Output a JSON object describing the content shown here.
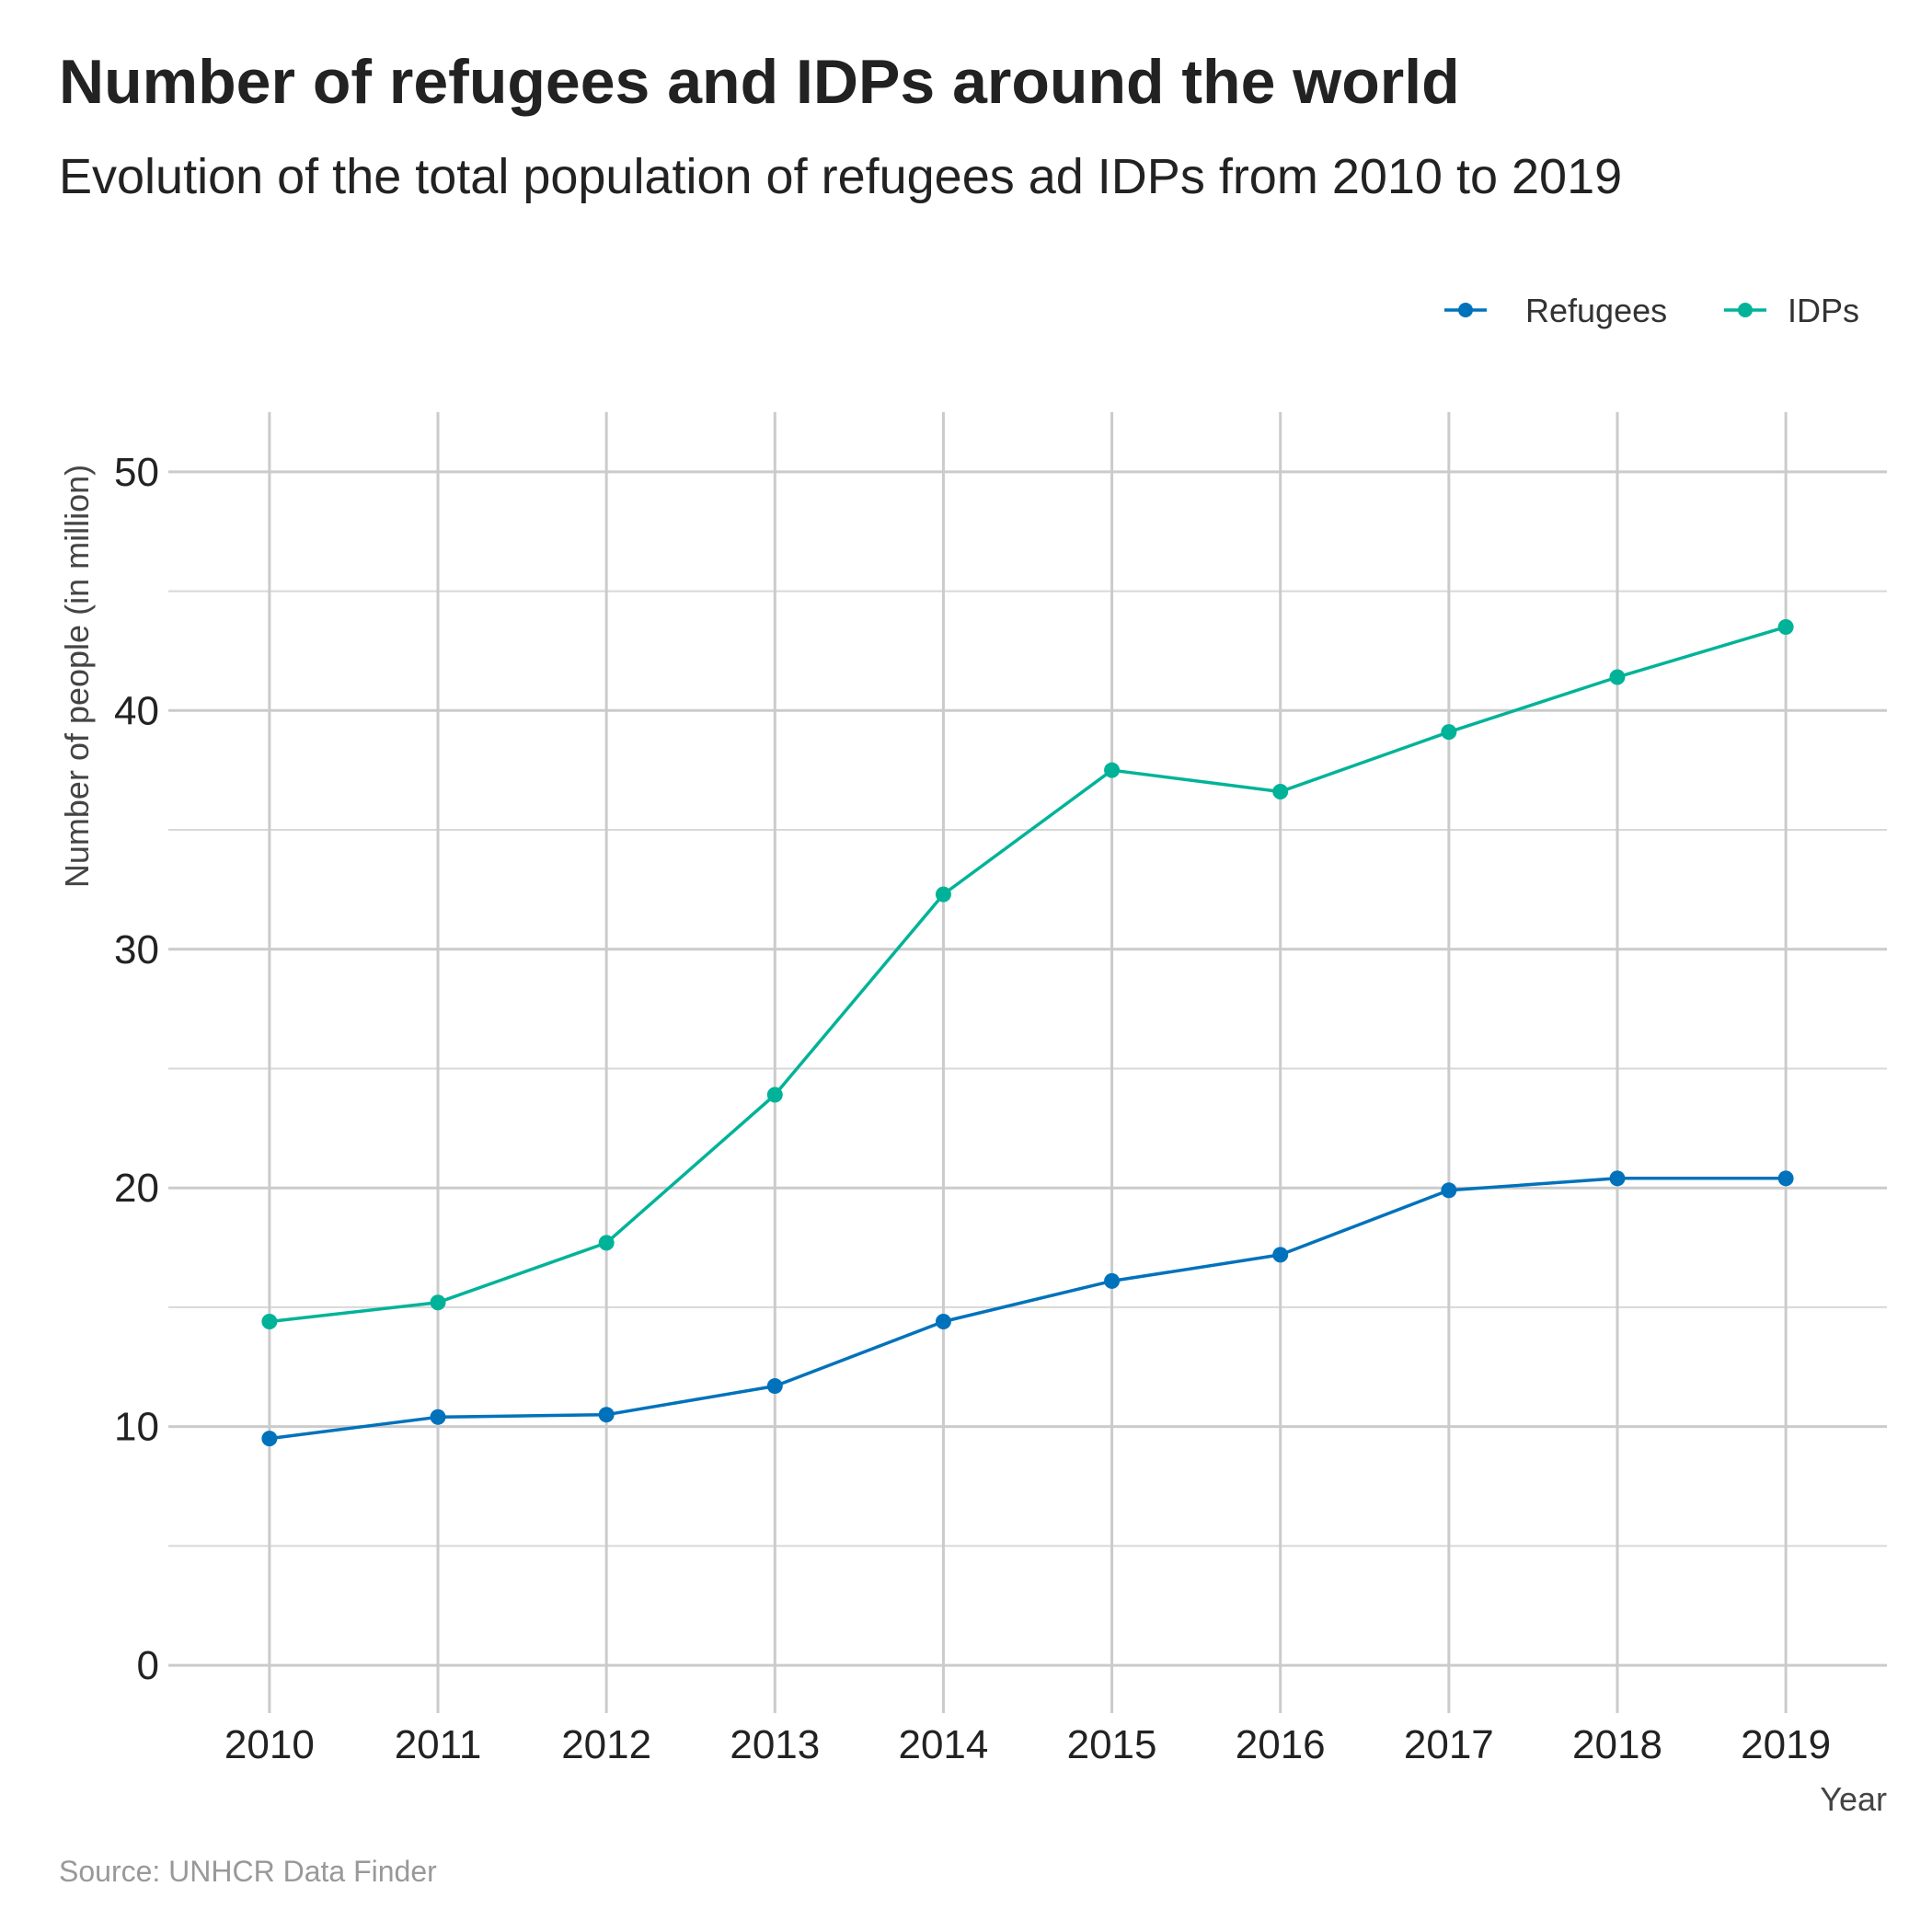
{
  "chart_data": {
    "type": "line",
    "title": "Number of refugees and IDPs around the world",
    "subtitle": "Evolution of the total population of refugees ad IDPs from 2010 to 2019",
    "xlabel": "Year",
    "ylabel": "Number of people (in million)",
    "caption": "Source: UNHCR Data Finder",
    "x": [
      2010,
      2011,
      2012,
      2013,
      2014,
      2015,
      2016,
      2017,
      2018,
      2019
    ],
    "x_tick_labels": [
      "2010",
      "2011",
      "2012",
      "2013",
      "2014",
      "2015",
      "2016",
      "2017",
      "2018",
      "2019"
    ],
    "y_ticks": [
      0,
      10,
      20,
      30,
      40,
      50
    ],
    "y_tick_labels": [
      "0",
      "10",
      "20",
      "30",
      "40",
      "50"
    ],
    "ylim": [
      -2,
      52.5
    ],
    "xlim": [
      2009.4,
      2019.6
    ],
    "grid": true,
    "legend_position": "top-right",
    "series": [
      {
        "name": "Refugees",
        "color": "#0072BC",
        "values": [
          9.5,
          10.4,
          10.5,
          11.7,
          14.4,
          16.1,
          17.2,
          19.9,
          20.4,
          20.4
        ]
      },
      {
        "name": "IDPs",
        "color": "#00B398",
        "values": [
          14.4,
          15.2,
          17.7,
          23.9,
          32.3,
          37.5,
          36.6,
          39.1,
          41.4,
          43.5
        ]
      }
    ]
  }
}
